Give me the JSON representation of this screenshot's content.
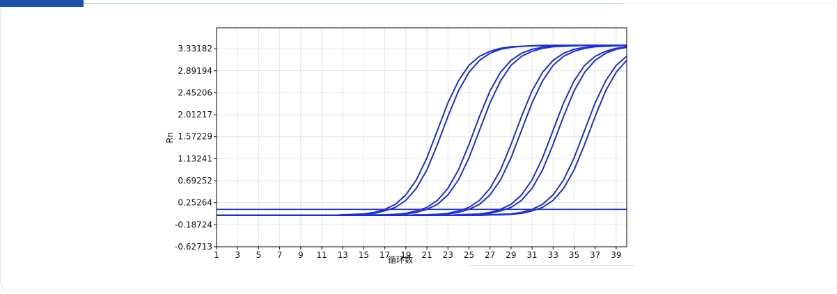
{
  "chart_data": {
    "type": "line",
    "y_label": "Rn",
    "x_label": "循环数",
    "color": "#1c2fd8",
    "grid": true,
    "x": [
      1,
      2,
      3,
      4,
      5,
      6,
      7,
      8,
      9,
      10,
      11,
      12,
      13,
      14,
      15,
      16,
      17,
      18,
      19,
      20,
      21,
      22,
      23,
      24,
      25,
      26,
      27,
      28,
      29,
      30,
      31,
      32,
      33,
      34,
      35,
      36,
      37,
      38,
      39,
      40
    ],
    "xlim": [
      1,
      40
    ],
    "xticks": [
      1,
      3,
      5,
      7,
      9,
      11,
      13,
      15,
      17,
      19,
      21,
      23,
      25,
      27,
      29,
      31,
      33,
      35,
      37,
      39
    ],
    "ylim": [
      -0.62713,
      3.75
    ],
    "yticks": [
      -0.62713,
      -0.18724,
      0.25264,
      0.69252,
      1.13241,
      1.57229,
      2.01217,
      2.45206,
      2.89194,
      3.33182
    ],
    "threshold": 0.12,
    "series": [
      {
        "values": [
          0,
          0,
          0,
          0,
          0,
          0,
          0,
          0,
          0,
          0,
          0,
          0,
          0.01,
          0.02,
          0.03,
          0.06,
          0.12,
          0.22,
          0.41,
          0.71,
          1.15,
          1.7,
          2.25,
          2.69,
          3.0,
          3.18,
          3.28,
          3.34,
          3.37,
          3.38,
          3.39,
          3.4,
          3.4,
          3.4,
          3.4,
          3.4,
          3.4,
          3.4,
          3.4,
          3.4
        ]
      },
      {
        "values": [
          0,
          0,
          0,
          0,
          0,
          0,
          0,
          0,
          0,
          0,
          0,
          0,
          0.01,
          0.01,
          0.02,
          0.04,
          0.09,
          0.16,
          0.3,
          0.54,
          0.91,
          1.42,
          1.98,
          2.49,
          2.86,
          3.1,
          3.24,
          3.32,
          3.36,
          3.38,
          3.39,
          3.39,
          3.4,
          3.4,
          3.4,
          3.4,
          3.4,
          3.4,
          3.4,
          3.4
        ]
      },
      {
        "values": [
          0,
          0,
          0,
          0,
          0,
          0,
          0,
          0,
          0,
          0,
          0,
          0,
          0,
          0,
          0,
          0.01,
          0.01,
          0.02,
          0.04,
          0.09,
          0.16,
          0.3,
          0.54,
          0.91,
          1.42,
          1.98,
          2.49,
          2.86,
          3.1,
          3.24,
          3.32,
          3.36,
          3.38,
          3.39,
          3.39,
          3.4,
          3.4,
          3.4,
          3.4,
          3.4
        ]
      },
      {
        "values": [
          0,
          0,
          0,
          0,
          0,
          0,
          0,
          0,
          0,
          0,
          0,
          0,
          0,
          0,
          0,
          0,
          0.01,
          0.02,
          0.03,
          0.06,
          0.12,
          0.22,
          0.41,
          0.71,
          1.15,
          1.7,
          2.25,
          2.69,
          3.0,
          3.18,
          3.28,
          3.34,
          3.37,
          3.38,
          3.39,
          3.4,
          3.4,
          3.4,
          3.4,
          3.4
        ]
      },
      {
        "values": [
          0,
          0,
          0,
          0,
          0,
          0,
          0,
          0,
          0,
          0,
          0,
          0,
          0,
          0,
          0,
          0,
          0,
          0,
          0,
          0.01,
          0.01,
          0.02,
          0.04,
          0.09,
          0.16,
          0.3,
          0.54,
          0.91,
          1.42,
          1.98,
          2.49,
          2.86,
          3.1,
          3.24,
          3.32,
          3.36,
          3.38,
          3.39,
          3.39,
          3.4
        ]
      },
      {
        "values": [
          0,
          0,
          0,
          0,
          0,
          0,
          0,
          0,
          0,
          0,
          0,
          0,
          0,
          0,
          0,
          0,
          0,
          0,
          0,
          0,
          0.01,
          0.02,
          0.03,
          0.06,
          0.12,
          0.22,
          0.41,
          0.71,
          1.15,
          1.7,
          2.25,
          2.69,
          3.0,
          3.18,
          3.28,
          3.34,
          3.37,
          3.38,
          3.39,
          3.4
        ]
      },
      {
        "values": [
          0,
          0,
          0,
          0,
          0,
          0,
          0,
          0,
          0,
          0,
          0,
          0,
          0,
          0,
          0,
          0,
          0,
          0,
          0,
          0,
          0,
          0,
          0,
          0.01,
          0.02,
          0.03,
          0.06,
          0.12,
          0.22,
          0.41,
          0.71,
          1.15,
          1.7,
          2.25,
          2.69,
          3.0,
          3.18,
          3.28,
          3.34,
          3.37
        ]
      },
      {
        "values": [
          0,
          0,
          0,
          0,
          0,
          0,
          0,
          0,
          0,
          0,
          0,
          0,
          0,
          0,
          0,
          0,
          0,
          0,
          0,
          0,
          0,
          0,
          0,
          0.01,
          0.01,
          0.02,
          0.04,
          0.09,
          0.16,
          0.3,
          0.54,
          0.91,
          1.42,
          1.98,
          2.49,
          2.86,
          3.1,
          3.24,
          3.32,
          3.36
        ]
      },
      {
        "values": [
          0,
          0,
          0,
          0,
          0,
          0,
          0,
          0,
          0,
          0,
          0,
          0,
          0,
          0,
          0,
          0,
          0,
          0,
          0,
          0,
          0,
          0,
          0,
          0,
          0,
          0,
          0.01,
          0.02,
          0.03,
          0.06,
          0.12,
          0.22,
          0.41,
          0.71,
          1.15,
          1.7,
          2.25,
          2.69,
          3.0,
          3.18
        ]
      },
      {
        "values": [
          0,
          0,
          0,
          0,
          0,
          0,
          0,
          0,
          0,
          0,
          0,
          0,
          0,
          0,
          0,
          0,
          0,
          0,
          0,
          0,
          0,
          0,
          0,
          0,
          0,
          0,
          0.01,
          0.01,
          0.02,
          0.04,
          0.09,
          0.16,
          0.3,
          0.54,
          0.91,
          1.42,
          1.98,
          2.49,
          2.86,
          3.1
        ]
      }
    ]
  }
}
